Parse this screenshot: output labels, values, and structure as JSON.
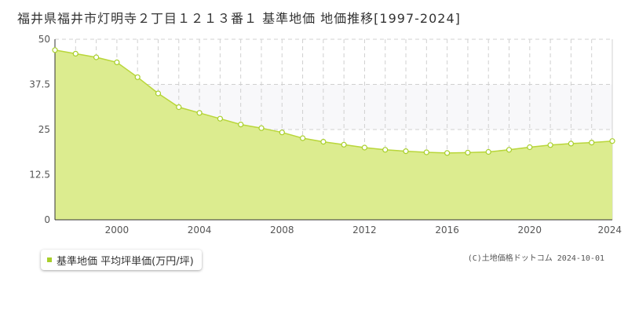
{
  "title": "福井県福井市灯明寺２丁目１２１３番１ 基準地価 地価推移[1997-2024]",
  "legend_label": "基準地価 平均坪単価(万円/坪)",
  "copyright": "(C)土地価格ドットコム 2024-10-01",
  "colors": {
    "fill": "#dcec8f",
    "line": "#b9d63a",
    "band": "#f8f8fa",
    "grid": "#d0d0d0",
    "marker": "#a8cf2a"
  },
  "chart_data": {
    "type": "area",
    "title": "福井県福井市灯明寺２丁目１２１３番１ 基準地価 地価推移[1997-2024]",
    "xlabel": "",
    "ylabel": "",
    "xlim": [
      1997,
      2024
    ],
    "ylim": [
      0,
      50
    ],
    "yticks": [
      0,
      12.5,
      25,
      37.5,
      50
    ],
    "ytick_labels": [
      "0",
      "12.5",
      "25",
      "37.5",
      "50"
    ],
    "xticks": [
      2000,
      2004,
      2008,
      2012,
      2016,
      2020,
      2024
    ],
    "grid": true,
    "series": [
      {
        "name": "基準地価 平均坪単価(万円/坪)",
        "x": [
          1997,
          1998,
          1999,
          2000,
          2001,
          2002,
          2003,
          2004,
          2005,
          2006,
          2007,
          2008,
          2009,
          2010,
          2011,
          2012,
          2013,
          2014,
          2015,
          2016,
          2017,
          2018,
          2019,
          2020,
          2021,
          2022,
          2023,
          2024
        ],
        "values": [
          47.0,
          46.0,
          45.0,
          43.6,
          39.5,
          35.0,
          31.2,
          29.6,
          28.0,
          26.4,
          25.4,
          24.2,
          22.6,
          21.6,
          20.8,
          20.0,
          19.4,
          19.0,
          18.7,
          18.5,
          18.6,
          18.8,
          19.4,
          20.1,
          20.7,
          21.1,
          21.4,
          21.8
        ]
      }
    ]
  }
}
